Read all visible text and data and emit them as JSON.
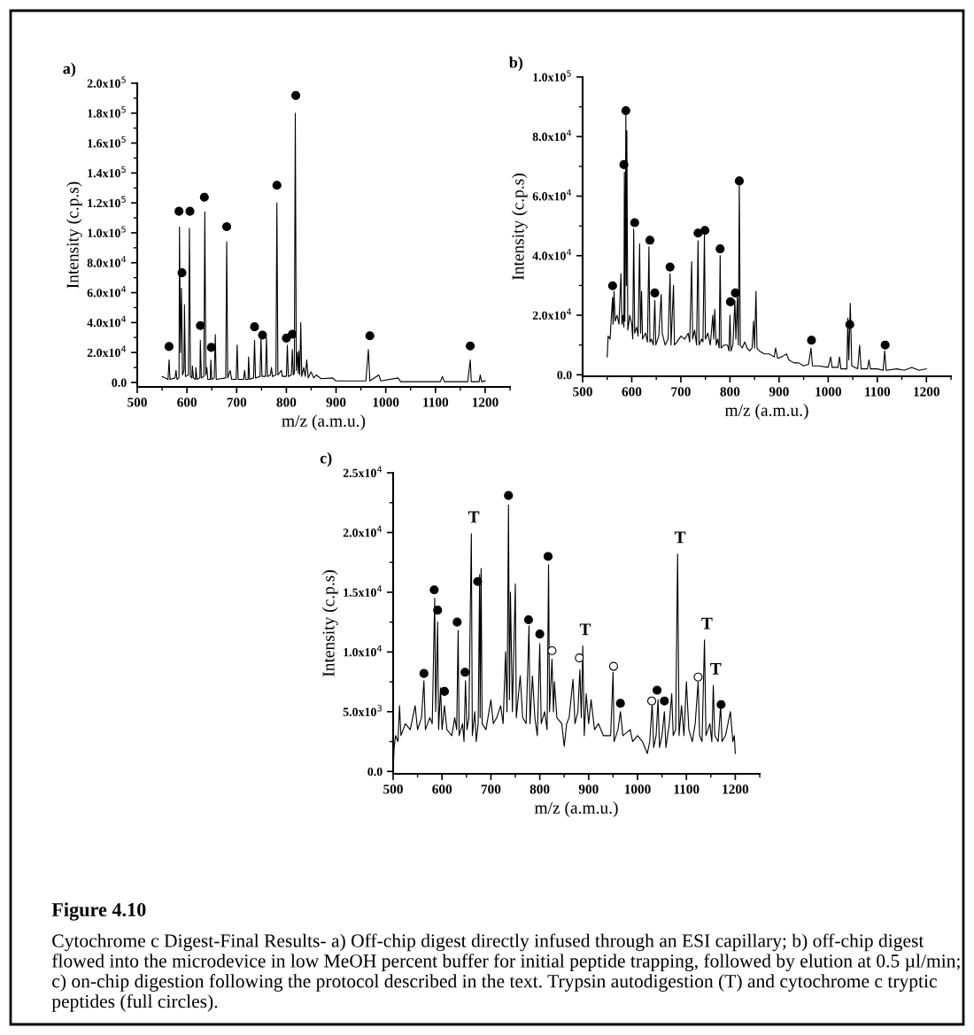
{
  "chart_data": [
    {
      "type": "line",
      "title": "a)",
      "xlabel": "m/z (a.m.u.)",
      "ylabel": "Intensity (c.p.s)",
      "xlim": [
        500,
        1250
      ],
      "ylim": [
        -3000,
        200000
      ],
      "xticks": [
        500,
        600,
        700,
        800,
        900,
        1000,
        1100,
        1200
      ],
      "yticks": [
        {
          "value": 0,
          "label": "0.0"
        },
        {
          "value": 20000,
          "label": "2.0x10$^{4}$"
        },
        {
          "value": 40000,
          "label": "4.0x10$^{4}$"
        },
        {
          "value": 60000,
          "label": "6.0x10$^{4}$"
        },
        {
          "value": 80000,
          "label": "8.0x10$^{4}$"
        },
        {
          "value": 100000,
          "label": "1.0x10$^{5}$"
        },
        {
          "value": 120000,
          "label": "1.2x10$^{5}$"
        },
        {
          "value": 140000,
          "label": "1.4x10$^{5}$"
        },
        {
          "value": 160000,
          "label": "1.6x10$^{5}$"
        },
        {
          "value": 180000,
          "label": "1.8x10$^{5}$"
        },
        {
          "value": 200000,
          "label": "2.0x10$^{5}$"
        }
      ],
      "grid": false,
      "series": [
        {
          "color": "#000000",
          "line_style": "solid",
          "marker": "none",
          "x": [
            550,
            562,
            564,
            566,
            576,
            578,
            580,
            584,
            585,
            587,
            589,
            591,
            594,
            595,
            597,
            603,
            605,
            607,
            610,
            611,
            613,
            617,
            618,
            620,
            626,
            627,
            629,
            634,
            636,
            638,
            640,
            642,
            647,
            648,
            650,
            655,
            657,
            659,
            678,
            680,
            682,
            687,
            690,
            699,
            701,
            703,
            714,
            716,
            718,
            723,
            724,
            726,
            734,
            736,
            738,
            747,
            749,
            751,
            758,
            760,
            762,
            768,
            770,
            772,
            779,
            781,
            783,
            790,
            792,
            800,
            802,
            804,
            810,
            812,
            814,
            816,
            818,
            820,
            822,
            824,
            825,
            827,
            829,
            831,
            835,
            838,
            841,
            844,
            850,
            855,
            860,
            870,
            893,
            900,
            960,
            965,
            968,
            986,
            990,
            1025,
            1030,
            1110,
            1114,
            1118,
            1165,
            1170,
            1172,
            1188,
            1190,
            1193,
            1200
          ],
          "values": [
            4000,
            2000,
            15000,
            2000,
            3000,
            8000,
            2000,
            3000,
            104000,
            20000,
            63000,
            5000,
            8000,
            52000,
            4000,
            5000,
            103000,
            4000,
            3000,
            11000,
            3000,
            2000,
            10000,
            2000,
            3000,
            28000,
            3000,
            4000,
            114000,
            5000,
            10000,
            2000,
            2000,
            15000,
            2000,
            3000,
            32000,
            2000,
            3000,
            94000,
            3000,
            8000,
            2000,
            2000,
            25000,
            2000,
            2000,
            8000,
            2000,
            2000,
            17000,
            2000,
            3000,
            28000,
            3000,
            4000,
            30000,
            4000,
            4000,
            30000,
            4000,
            5000,
            10000,
            4000,
            5000,
            120000,
            5000,
            8000,
            4000,
            4000,
            25000,
            4000,
            5000,
            22000,
            5000,
            6000,
            180000,
            8000,
            20000,
            6000,
            21000,
            5000,
            40000,
            4000,
            10000,
            4000,
            15000,
            3000,
            7000,
            3000,
            5000,
            2500,
            3000,
            1000,
            1000,
            22000,
            1000,
            5000,
            1000,
            3000,
            500,
            500,
            4000,
            500,
            500,
            15000,
            500,
            500,
            5000,
            500,
            1000
          ]
        },
        {
          "type": "scatter",
          "color": "#000000",
          "marker": "circle",
          "x": [
            564,
            584,
            590,
            606,
            627,
            635,
            649,
            680,
            736,
            752,
            781,
            800,
            812,
            819,
            968,
            1170
          ],
          "values": [
            24000,
            114400,
            73300,
            114400,
            38000,
            123800,
            23400,
            104100,
            37200,
            31600,
            131800,
            29600,
            32200,
            191800,
            31200,
            24400
          ]
        }
      ]
    },
    {
      "type": "line",
      "title": "b)",
      "xlabel": "m/z (a.m.u.)",
      "ylabel": "Intensity (c.p.s)",
      "xlim": [
        500,
        1250
      ],
      "ylim": [
        -500,
        100000
      ],
      "xticks": [
        500,
        600,
        700,
        800,
        900,
        1000,
        1100,
        1200
      ],
      "yticks": [
        {
          "value": 0,
          "label": "0.0"
        },
        {
          "value": 20000,
          "label": "2.0x10$^{4}$"
        },
        {
          "value": 40000,
          "label": "4.0x10$^{4}$"
        },
        {
          "value": 60000,
          "label": "6.0x10$^{4}$"
        },
        {
          "value": 80000,
          "label": "8.0x10$^{4}$"
        },
        {
          "value": 100000,
          "label": "1.0x10$^{5}$"
        }
      ],
      "grid": false,
      "series": [
        {
          "color": "#000000",
          "line_style": "solid",
          "marker": "none",
          "x": [
            550,
            552,
            556,
            558,
            561,
            562,
            564,
            566,
            570,
            574,
            578,
            580,
            582,
            584,
            585,
            586,
            588,
            589,
            590,
            592,
            596,
            600,
            602,
            604,
            606,
            610,
            613,
            616,
            618,
            620,
            622,
            628,
            632,
            635,
            637,
            640,
            644,
            647,
            649,
            655,
            660,
            662,
            668,
            674,
            678,
            680,
            685,
            687,
            692,
            700,
            708,
            715,
            718,
            722,
            724,
            728,
            732,
            735,
            737,
            742,
            745,
            748,
            750,
            755,
            760,
            765,
            767,
            769,
            772,
            775,
            778,
            780,
            782,
            788,
            795,
            798,
            800,
            802,
            806,
            810,
            812,
            815,
            817,
            819,
            821,
            825,
            830,
            835,
            840,
            845,
            848,
            850,
            853,
            855,
            860,
            870,
            880,
            890,
            893,
            897,
            905,
            915,
            920,
            930,
            940,
            950,
            960,
            965,
            968,
            980,
            1000,
            1005,
            1008,
            1020,
            1023,
            1026,
            1038,
            1040,
            1042,
            1045,
            1048,
            1060,
            1064,
            1067,
            1080,
            1083,
            1086,
            1100,
            1112,
            1115,
            1118,
            1140,
            1155,
            1170,
            1185,
            1200
          ],
          "values": [
            6000,
            13000,
            12000,
            18000,
            26000,
            17000,
            28000,
            18000,
            20000,
            17000,
            34000,
            17000,
            20000,
            16000,
            68000,
            18000,
            88000,
            30000,
            82000,
            15000,
            20000,
            17000,
            12000,
            49000,
            14000,
            16000,
            13000,
            44000,
            14000,
            28000,
            12000,
            14000,
            11000,
            43000,
            11000,
            12000,
            10000,
            25000,
            10000,
            13000,
            27000,
            14000,
            10000,
            12000,
            34000,
            10000,
            30000,
            10000,
            11000,
            13000,
            12000,
            14000,
            11000,
            38000,
            12000,
            15000,
            10000,
            45000,
            10000,
            12000,
            11000,
            47000,
            12000,
            14000,
            10000,
            20000,
            12000,
            22000,
            10000,
            12000,
            9000,
            40000,
            9000,
            10000,
            10000,
            8000,
            20000,
            8000,
            10000,
            25000,
            12000,
            26000,
            10000,
            64000,
            10000,
            9000,
            11000,
            9000,
            8000,
            9000,
            18000,
            9000,
            28000,
            9000,
            8000,
            7000,
            7000,
            6000,
            9000,
            5500,
            6000,
            7000,
            5000,
            4000,
            4000,
            3000,
            3500,
            9000,
            3000,
            3000,
            2500,
            6000,
            2500,
            2500,
            6000,
            2000,
            2000,
            19000,
            5000,
            24000,
            3000,
            2000,
            10000,
            2000,
            2000,
            5000,
            2000,
            2000,
            1500,
            8000,
            1500,
            2000,
            1500,
            2500,
            1500,
            2000
          ]
        },
        {
          "type": "scatter",
          "color": "#000000",
          "marker": "circle",
          "x": [
            561,
            584,
            588,
            606,
            637,
            647,
            678,
            735,
            749,
            780,
            801,
            811,
            819,
            966,
            1044,
            1116
          ],
          "values": [
            29900,
            70600,
            88700,
            51100,
            45200,
            27500,
            36200,
            47600,
            48500,
            42300,
            24500,
            27500,
            65100,
            11600,
            16900,
            10000
          ]
        }
      ]
    },
    {
      "type": "line",
      "title": "c)",
      "xlabel": "m/z (a.m.u.)",
      "ylabel": "Intensity (c.p.s)",
      "xlim": [
        500,
        1250
      ],
      "ylim": [
        -200,
        25000
      ],
      "xticks": [
        500,
        600,
        700,
        800,
        900,
        1000,
        1100,
        1200
      ],
      "yticks": [
        {
          "value": 0,
          "label": "0.0"
        },
        {
          "value": 5000,
          "label": "5.0x10$^{3}$"
        },
        {
          "value": 10000,
          "label": "1.0x10$^{4}$"
        },
        {
          "value": 15000,
          "label": "1.5x10$^{4}$"
        },
        {
          "value": 20000,
          "label": "2.0x10$^{4}$"
        },
        {
          "value": 25000,
          "label": "2.5x10$^{4}$"
        }
      ],
      "grid": false,
      "annotations": [
        {
          "text": "T",
          "x": 660,
          "y": 19900
        },
        {
          "text": "T",
          "x": 888,
          "y": 10500
        },
        {
          "text": "T",
          "x": 1082,
          "y": 18200
        },
        {
          "text": "T",
          "x": 1137,
          "y": 11000
        },
        {
          "text": "T",
          "x": 1155,
          "y": 7200
        },
        "Figure 4.10",
        "Cytochrome c Digest-Final Results- a) Off-chip digest directly infused through an ESI capillary; b) off-chip digest flowed into the microdevice in low MeOH percent buffer for initial peptide trapping, followed by elution at 0.5 µl/min; c) on-chip digestion following the protocol described in the text. Trypsin autodigestion (T) and cytochrome c tryptic peptides (full circles)."
      ],
      "series": [
        {
          "color": "#000000",
          "line_style": "solid",
          "marker": "none",
          "x": [
            500,
            502,
            505,
            510,
            513,
            516,
            525,
            535,
            545,
            550,
            558,
            563,
            566,
            575,
            580,
            585,
            587,
            591,
            593,
            597,
            600,
            605,
            610,
            620,
            626,
            630,
            633,
            635,
            642,
            645,
            648,
            651,
            655,
            660,
            662,
            667,
            670,
            674,
            677,
            678,
            680,
            682,
            690,
            700,
            705,
            712,
            720,
            725,
            730,
            733,
            736,
            738,
            740,
            744,
            750,
            752,
            760,
            765,
            772,
            778,
            780,
            785,
            790,
            795,
            800,
            803,
            810,
            815,
            818,
            820,
            825,
            828,
            830,
            835,
            845,
            850,
            855,
            860,
            868,
            872,
            878,
            882,
            885,
            888,
            891,
            895,
            900,
            905,
            912,
            920,
            930,
            945,
            950,
            952,
            960,
            965,
            970,
            985,
            990,
            1000,
            1010,
            1020,
            1025,
            1030,
            1033,
            1038,
            1042,
            1045,
            1050,
            1055,
            1058,
            1065,
            1070,
            1073,
            1078,
            1082,
            1085,
            1090,
            1095,
            1100,
            1105,
            1112,
            1118,
            1124,
            1127,
            1132,
            1137,
            1140,
            1148,
            1152,
            1155,
            1158,
            1165,
            1170,
            1173,
            1180,
            1190,
            1195,
            1198,
            1200
          ],
          "values": [
            0,
            2000,
            3000,
            2500,
            5500,
            3000,
            4000,
            3500,
            5500,
            3500,
            4500,
            7600,
            3500,
            4500,
            4000,
            14500,
            5000,
            12500,
            3500,
            7000,
            3500,
            5500,
            3500,
            3000,
            4500,
            3500,
            11800,
            3000,
            4000,
            2500,
            7600,
            3500,
            4500,
            19900,
            3000,
            5000,
            2500,
            4000,
            16500,
            4500,
            17000,
            4000,
            3500,
            6000,
            4000,
            4500,
            5500,
            4000,
            10000,
            5000,
            22300,
            6000,
            15000,
            5000,
            15700,
            4500,
            8000,
            4500,
            4000,
            12200,
            4000,
            8000,
            4500,
            3000,
            10700,
            4000,
            5000,
            3500,
            17300,
            5000,
            9400,
            5000,
            7500,
            4500,
            4000,
            2100,
            4000,
            4500,
            7700,
            4000,
            5000,
            8500,
            4500,
            10500,
            3000,
            6500,
            4000,
            6000,
            3500,
            4000,
            3000,
            3000,
            8300,
            2500,
            3500,
            5000,
            3000,
            3500,
            2500,
            3000,
            2500,
            1500,
            2500,
            5700,
            2000,
            3000,
            6000,
            2000,
            3000,
            5000,
            2000,
            4000,
            6500,
            3000,
            3500,
            18200,
            3000,
            5500,
            3000,
            7500,
            3500,
            2500,
            4000,
            7500,
            3000,
            2500,
            11000,
            3000,
            4000,
            2500,
            7200,
            3000,
            2500,
            5500,
            2500,
            3000,
            5000,
            2500,
            3000,
            1500
          ]
        },
        {
          "type": "scatter",
          "color": "#000000",
          "marker": "circle",
          "x": [
            563,
            584,
            591,
            605,
            631,
            647,
            673,
            736,
            777,
            800,
            817,
            965,
            1040,
            1055,
            1171
          ],
          "values": [
            8200,
            15200,
            13500,
            6700,
            12500,
            8300,
            15900,
            23100,
            12700,
            11500,
            18000,
            5700,
            6800,
            5900,
            5600
          ]
        },
        {
          "type": "scatter",
          "color": "#ffffff",
          "marker": "circle",
          "x": [
            825,
            881,
            951,
            1029,
            1124
          ],
          "values": [
            10100,
            9500,
            8800,
            5900,
            7900
          ]
        }
      ]
    }
  ]
}
